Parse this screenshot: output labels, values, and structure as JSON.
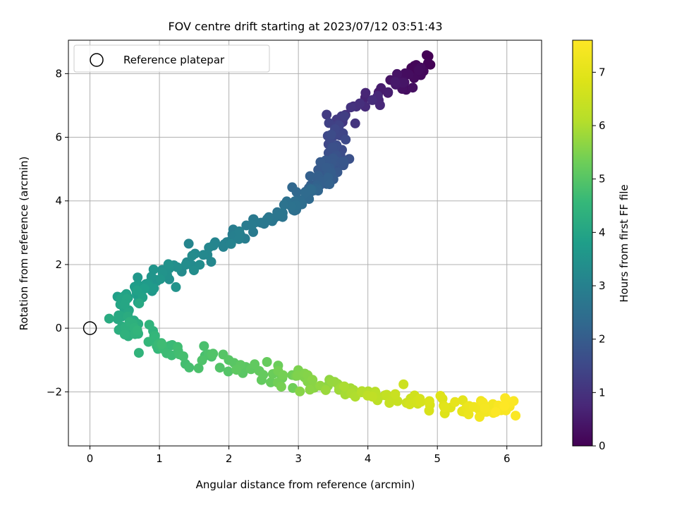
{
  "chart_data": {
    "type": "scatter",
    "title": "FOV centre drift starting at 2023/07/12 03:51:43",
    "xlabel": "Angular distance from reference (arcmin)",
    "ylabel": "Rotation from reference (arcmin)",
    "xlim": [
      -0.31,
      6.5
    ],
    "ylim": [
      -3.7,
      9.05
    ],
    "xticks": [
      0,
      1,
      2,
      3,
      4,
      5,
      6
    ],
    "yticks": [
      -2,
      0,
      2,
      4,
      6,
      8
    ],
    "xtick_labels": [
      "0",
      "1",
      "2",
      "3",
      "4",
      "5",
      "6"
    ],
    "ytick_labels": [
      "−2",
      "0",
      "2",
      "4",
      "6",
      "8"
    ],
    "grid": true,
    "legend": {
      "placement": "top-left",
      "entries": [
        "Reference platepar"
      ]
    },
    "reference_point": {
      "x": 0,
      "y": 0,
      "label": "Reference platepar"
    },
    "colorbar": {
      "label": "Hours from first FF file",
      "range": [
        0,
        7.6
      ],
      "ticks": [
        0,
        1,
        2,
        3,
        4,
        5,
        6,
        7
      ],
      "tick_labels": [
        "0",
        "1",
        "2",
        "3",
        "4",
        "5",
        "6",
        "7"
      ],
      "colormap": "viridis"
    },
    "drift_path": {
      "description_points": [
        {
          "x": 4.9,
          "y": 8.4,
          "hours": 0.0
        },
        {
          "x": 4.4,
          "y": 7.6,
          "hours": 0.4
        },
        {
          "x": 3.5,
          "y": 6.4,
          "hours": 1.3
        },
        {
          "x": 3.55,
          "y": 5.2,
          "hours": 1.8
        },
        {
          "x": 3.3,
          "y": 4.6,
          "hours": 2.1
        },
        {
          "x": 2.8,
          "y": 3.7,
          "hours": 2.6
        },
        {
          "x": 2.0,
          "y": 2.8,
          "hours": 3.0
        },
        {
          "x": 1.0,
          "y": 1.6,
          "hours": 3.5
        },
        {
          "x": 0.5,
          "y": 1.0,
          "hours": 3.9
        },
        {
          "x": 0.55,
          "y": 0.0,
          "hours": 4.3
        },
        {
          "x": 1.2,
          "y": -0.7,
          "hours": 4.7
        },
        {
          "x": 2.5,
          "y": -1.4,
          "hours": 5.2
        },
        {
          "x": 3.4,
          "y": -1.8,
          "hours": 5.7
        },
        {
          "x": 4.4,
          "y": -2.2,
          "hours": 6.4
        },
        {
          "x": 5.5,
          "y": -2.6,
          "hours": 7.2
        },
        {
          "x": 6.1,
          "y": -2.5,
          "hours": 7.6
        }
      ],
      "point_count": 420
    }
  }
}
